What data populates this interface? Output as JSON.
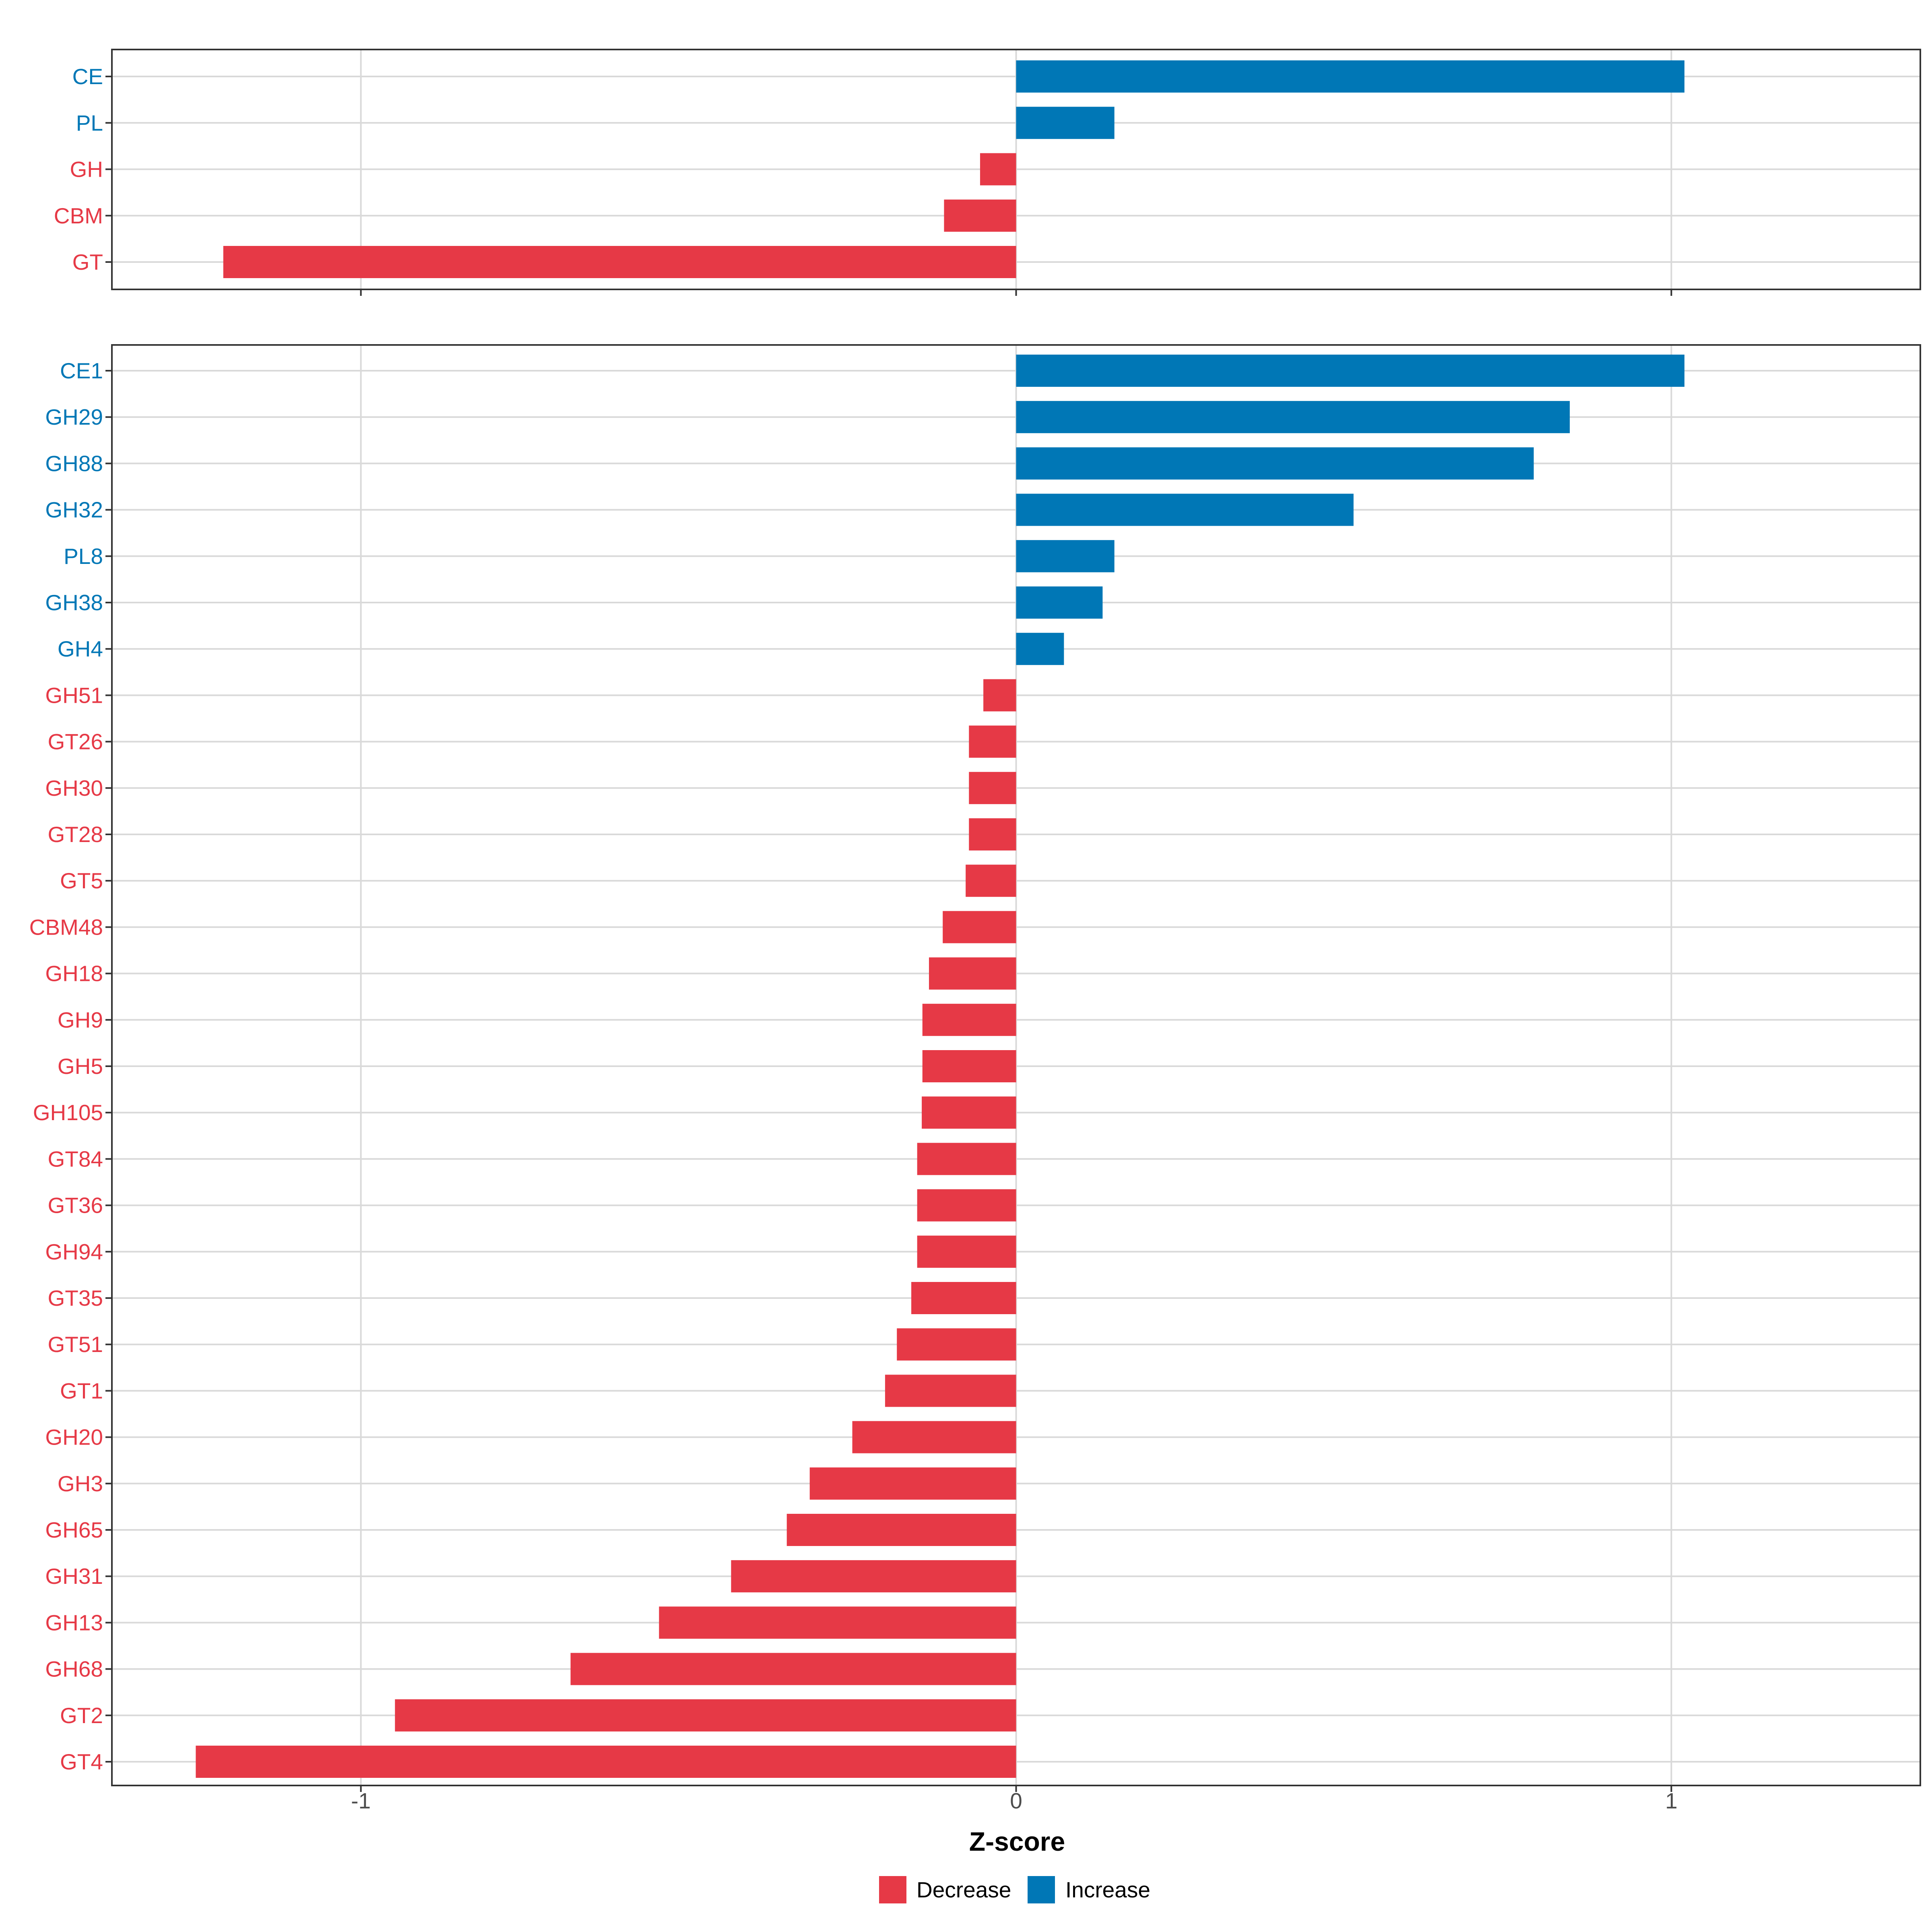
{
  "chart_data": [
    {
      "type": "bar",
      "orientation": "horizontal",
      "panel": "top",
      "categories": [
        "CE",
        "PL",
        "GH",
        "CBM",
        "GT"
      ],
      "values": [
        1.02,
        0.15,
        -0.055,
        -0.11,
        -1.21
      ],
      "xlim": [
        -1.38,
        1.38
      ],
      "xticks": [
        -1,
        0,
        1
      ],
      "grid": true
    },
    {
      "type": "bar",
      "orientation": "horizontal",
      "panel": "bottom",
      "categories": [
        "CE1",
        "GH29",
        "GH88",
        "GH32",
        "PL8",
        "GH38",
        "GH4",
        "GH51",
        "GT26",
        "GH30",
        "GT28",
        "GT5",
        "CBM48",
        "GH18",
        "GH9",
        "GH5",
        "GH105",
        "GT84",
        "GT36",
        "GH94",
        "GT35",
        "GT51",
        "GT1",
        "GH20",
        "GH3",
        "GH65",
        "GH31",
        "GH13",
        "GH68",
        "GT2",
        "GT4"
      ],
      "values": [
        1.02,
        0.845,
        0.79,
        0.515,
        0.15,
        0.132,
        0.073,
        -0.05,
        -0.072,
        -0.072,
        -0.072,
        -0.077,
        -0.112,
        -0.133,
        -0.143,
        -0.143,
        -0.144,
        -0.151,
        -0.151,
        -0.151,
        -0.16,
        -0.182,
        -0.2,
        -0.25,
        -0.315,
        -0.35,
        -0.435,
        -0.545,
        -0.68,
        -0.948,
        -1.252
      ],
      "xlim": [
        -1.38,
        1.38
      ],
      "xticks": [
        -1,
        0,
        1
      ],
      "xtick_labels": [
        "-1",
        "0",
        "1"
      ],
      "xlabel": "Z-score",
      "grid": true
    }
  ],
  "legend": {
    "position": "bottom",
    "items": [
      {
        "label": "Decrease",
        "color": "#E63946"
      },
      {
        "label": "Increase",
        "color": "#0077B6"
      }
    ]
  },
  "colors": {
    "decrease": "#E63946",
    "increase": "#0077B6",
    "grid": "#D9D9D9",
    "frame": "#333333",
    "tick_text": "#4D4D4D"
  }
}
